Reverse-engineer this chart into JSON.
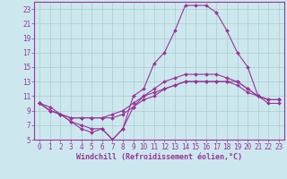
{
  "xlabel": "Windchill (Refroidissement éolien,°C)",
  "background_color": "#cce8ee",
  "grid_color": "#aacccc",
  "line_color": "#993399",
  "xlim": [
    -0.5,
    23.5
  ],
  "ylim": [
    5,
    24
  ],
  "xticks": [
    0,
    1,
    2,
    3,
    4,
    5,
    6,
    7,
    8,
    9,
    10,
    11,
    12,
    13,
    14,
    15,
    16,
    17,
    18,
    19,
    20,
    21,
    22,
    23
  ],
  "yticks": [
    5,
    7,
    9,
    11,
    13,
    15,
    17,
    19,
    21,
    23
  ],
  "series": [
    [
      10.0,
      9.0,
      8.5,
      7.5,
      7.0,
      6.5,
      6.5,
      5.0,
      6.5,
      11.0,
      12.0,
      15.5,
      17.0,
      20.0,
      23.5,
      23.5,
      23.5,
      22.5,
      20.0,
      17.0,
      15.0,
      11.0,
      10.0,
      10.0
    ],
    [
      10.0,
      9.0,
      8.5,
      8.0,
      8.0,
      8.0,
      8.0,
      8.5,
      9.0,
      10.0,
      11.0,
      12.0,
      13.0,
      13.5,
      14.0,
      14.0,
      14.0,
      14.0,
      13.5,
      13.0,
      12.0,
      11.0,
      10.5,
      10.5
    ],
    [
      10.0,
      9.5,
      8.5,
      8.0,
      8.0,
      8.0,
      8.0,
      8.0,
      8.5,
      9.5,
      10.5,
      11.0,
      12.0,
      12.5,
      13.0,
      13.0,
      13.0,
      13.0,
      13.0,
      12.5,
      11.5,
      11.0,
      10.5,
      10.5
    ],
    [
      10.0,
      9.0,
      8.5,
      7.5,
      6.5,
      6.0,
      6.5,
      5.0,
      6.5,
      9.5,
      11.0,
      11.5,
      12.0,
      12.5,
      13.0,
      13.0,
      13.0,
      13.0,
      13.0,
      13.0,
      12.0,
      11.0,
      10.5,
      10.5
    ]
  ],
  "tick_fontsize": 5.5,
  "xlabel_fontsize": 6.0
}
